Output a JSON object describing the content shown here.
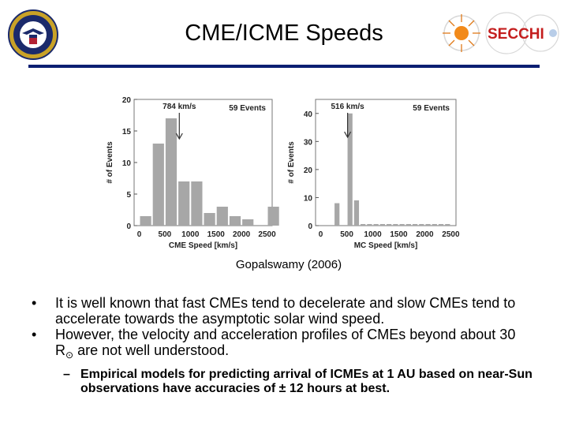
{
  "slide": {
    "title": "CME/ICME Speeds",
    "caption": "Gopalswamy (2006)",
    "bullets": [
      {
        "pre": "It is well known that fast CMEs tend to decelerate and slow CMEs tend to accelerate towards the asymptotic solar wind speed.",
        "post": ""
      },
      {
        "pre": "However, the velocity and acceleration profiles of CMEs beyond about 30 R",
        "sub": "⊙",
        "post": " are not well understood."
      }
    ],
    "sub_bullet": "Empirical models for predicting arrival of ICMEs at 1 AU based on near-Sun observations have accuracies of ± 12 hours at best.",
    "bullet_glyph": "•",
    "dash_glyph": "–",
    "secchi_logo_text": "SECCHI"
  },
  "colors": {
    "rule": "#0a1e72",
    "bar": "#a7a7a7",
    "secchi": "#c41e1e"
  },
  "chart_data": [
    {
      "type": "bar",
      "xlabel": "CME Speed [km/s]",
      "ylabel": "# of Events",
      "annotation_count": "59 Events",
      "annotation_mean": "784 km/s",
      "mean_value": 784,
      "xlim": [
        -100,
        2600
      ],
      "ylim": [
        0,
        20
      ],
      "bin_width": 250,
      "x_ticks": [
        0,
        500,
        1000,
        1500,
        2000,
        2500
      ],
      "y_ticks": [
        0,
        5,
        10,
        15,
        20
      ],
      "bins_start": [
        0,
        250,
        500,
        750,
        1000,
        1250,
        1500,
        1750,
        2000,
        2250,
        2500
      ],
      "values": [
        1.5,
        13,
        17,
        7,
        7,
        2,
        3,
        1.5,
        1,
        0,
        3
      ]
    },
    {
      "type": "bar",
      "xlabel": "MC Speed [km/s]",
      "ylabel": "# of Events",
      "annotation_count": "59 Events",
      "annotation_mean": "516 km/s",
      "mean_value": 516,
      "xlim": [
        -100,
        2600
      ],
      "ylim": [
        0,
        45
      ],
      "bin_width": 125,
      "x_ticks": [
        0,
        500,
        1000,
        1500,
        2000,
        2500
      ],
      "y_ticks": [
        0,
        10,
        20,
        30,
        40
      ],
      "bins_start": [
        250,
        375,
        500,
        625,
        750
      ],
      "values": [
        8,
        0,
        40,
        9,
        0
      ]
    }
  ]
}
